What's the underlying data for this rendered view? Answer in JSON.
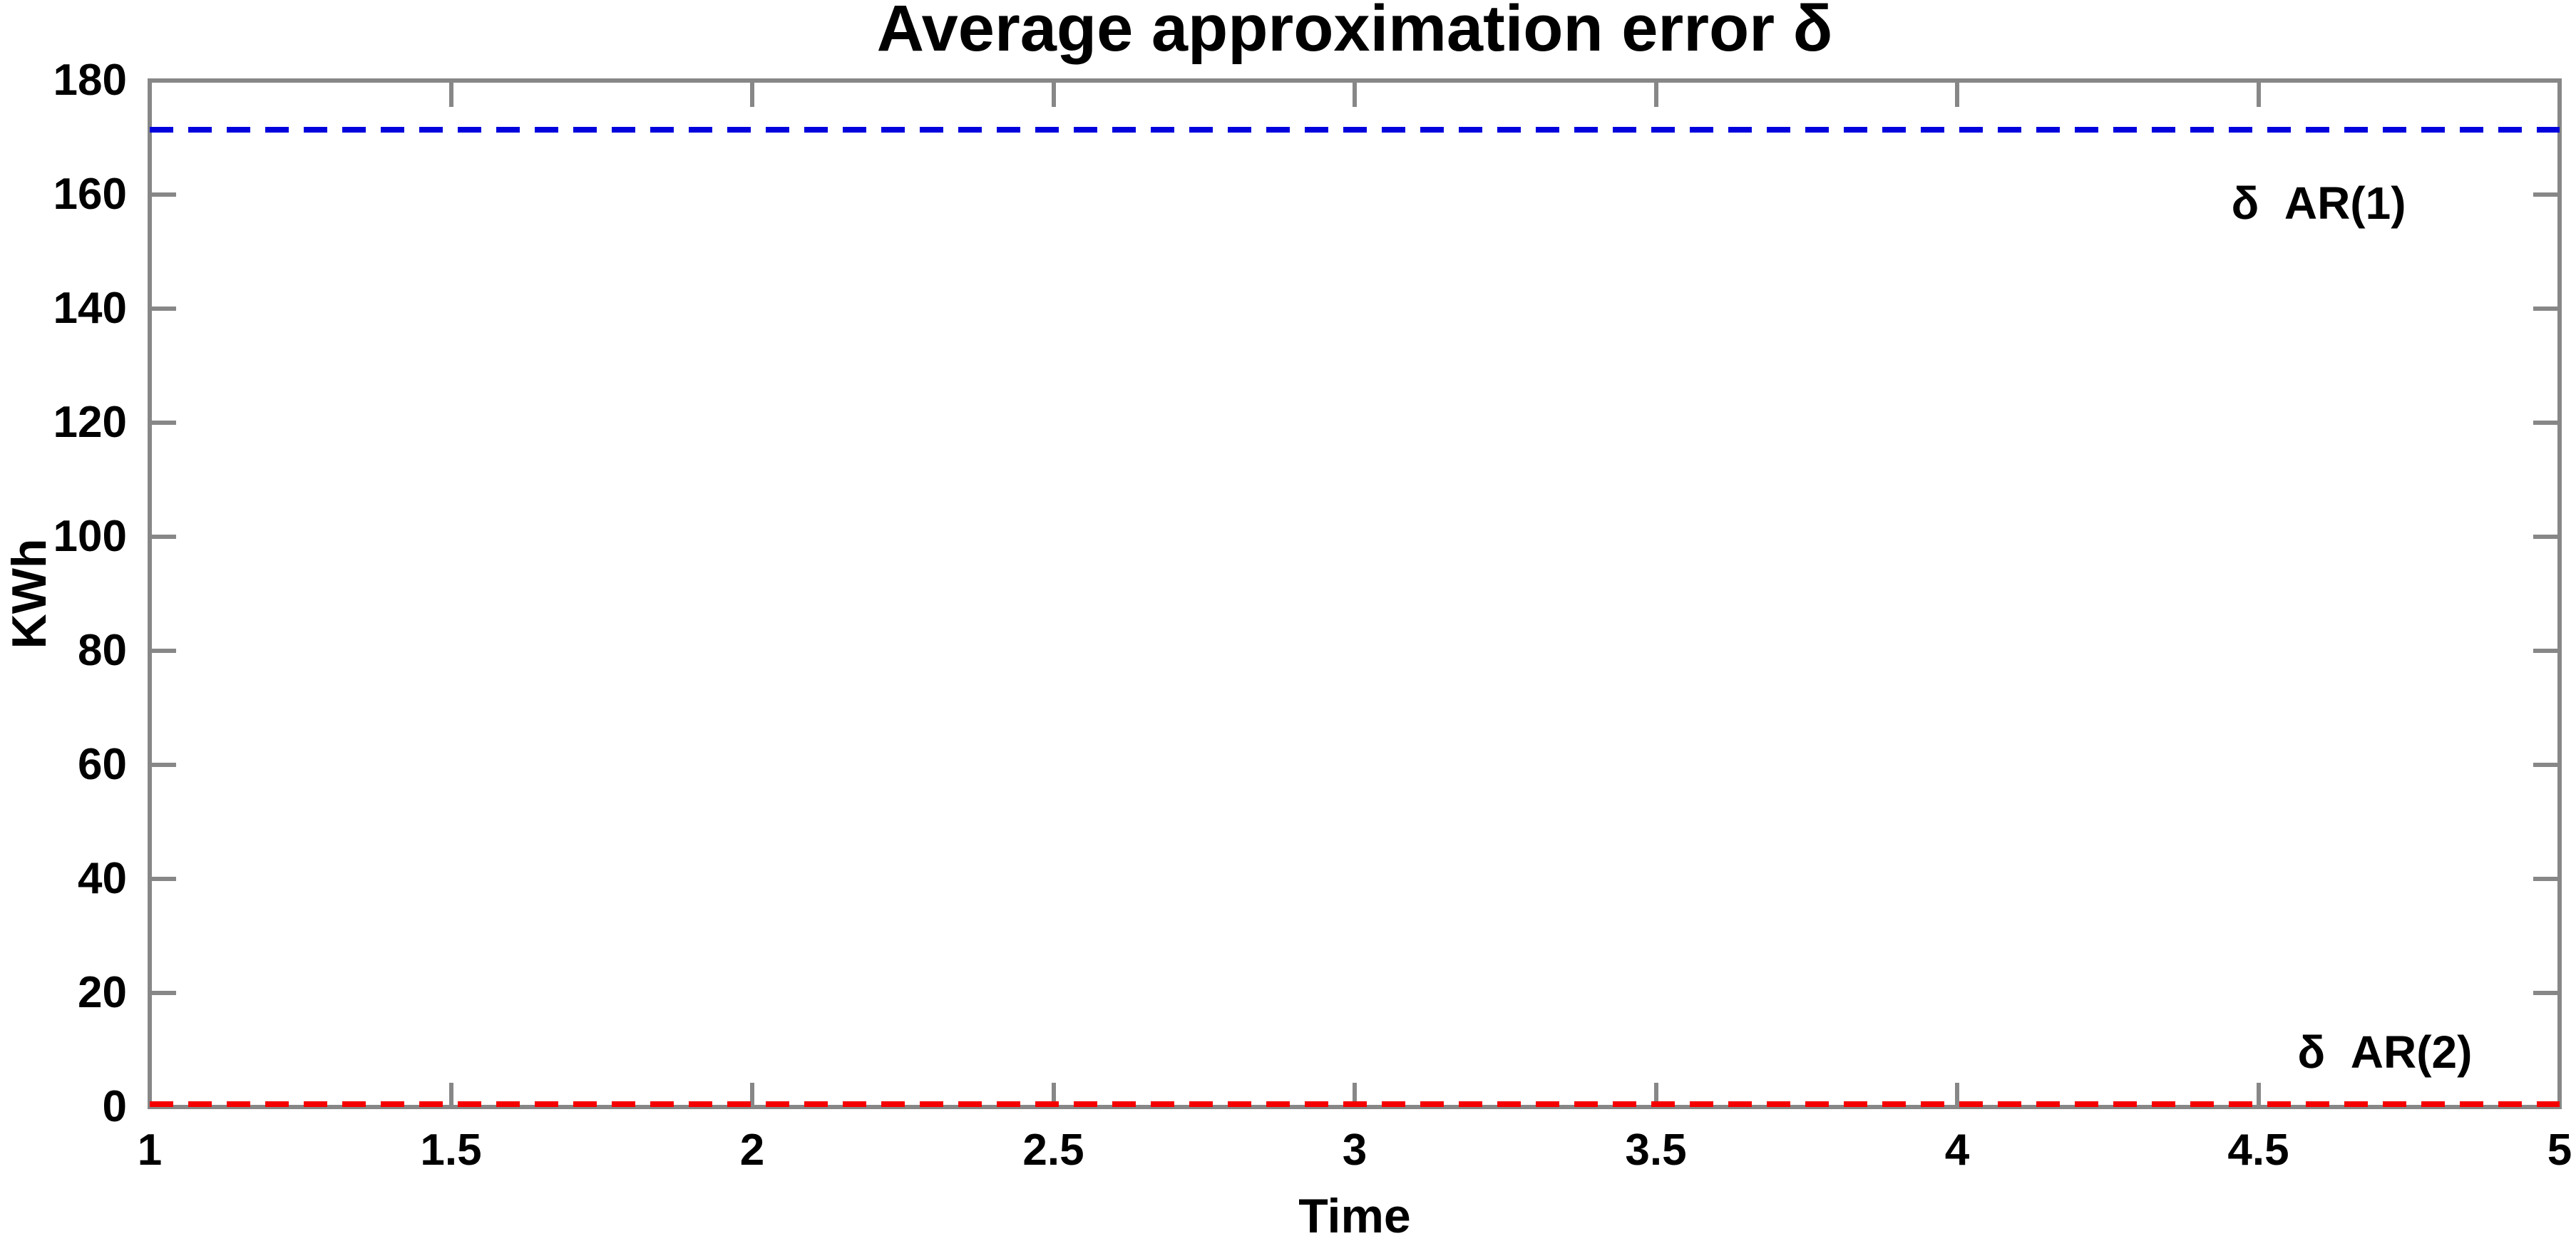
{
  "chart_data": {
    "type": "line",
    "title": "Average approximation error δ",
    "xlabel": "Time",
    "ylabel": "KWh",
    "xlim": [
      1,
      5
    ],
    "ylim": [
      0,
      180
    ],
    "x_ticks": [
      1,
      1.5,
      2,
      2.5,
      3,
      3.5,
      4,
      4.5,
      5
    ],
    "y_ticks": [
      0,
      20,
      40,
      60,
      80,
      100,
      120,
      140,
      160,
      180
    ],
    "grid": false,
    "legend_position": "none",
    "axis_color": "#878787",
    "background_color": "#ffffff",
    "series": [
      {
        "name": "delta AR(1)",
        "line_style": "dashed",
        "color": "#0202dd",
        "x": [
          1,
          5
        ],
        "values": [
          171.4,
          171.4
        ]
      },
      {
        "name": "delta AR(2)",
        "line_style": "dashed",
        "color": "#f40000",
        "x": [
          1,
          5
        ],
        "values": [
          0.5,
          0.5
        ]
      }
    ],
    "annotations": [
      {
        "text": "δ  AR(1)",
        "x": 4.6,
        "y": 158.5,
        "color": "#000000"
      },
      {
        "text": "δ  AR(2)",
        "x": 4.71,
        "y": 9.6,
        "color": "#000000"
      }
    ]
  }
}
